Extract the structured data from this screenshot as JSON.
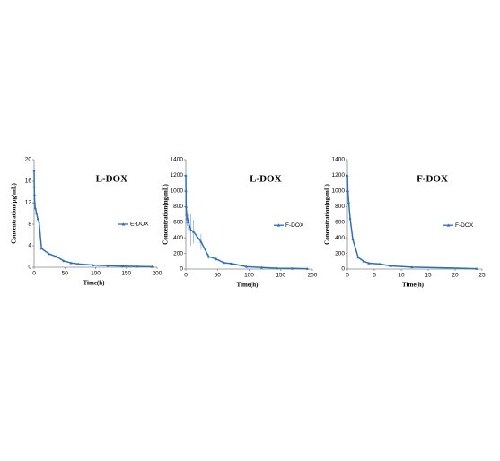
{
  "chart_data": [
    {
      "type": "line",
      "title": "L-DOX",
      "x_label": "Time(h)",
      "y_label": "Concentration(μg/mL)",
      "x": [
        0,
        0.25,
        0.5,
        1,
        2,
        4,
        6,
        8,
        12,
        24,
        36,
        48,
        60,
        72,
        96,
        120,
        144,
        168,
        192
      ],
      "series": [
        {
          "name": "E-DOX",
          "color": "#2e6fb7",
          "values": [
            18,
            15,
            13.5,
            12,
            11,
            10,
            9,
            8.5,
            3.5,
            2.5,
            2,
            1.2,
            0.8,
            0.6,
            0.4,
            0.3,
            0.2,
            0.15,
            0.1
          ]
        }
      ],
      "xlim": [
        0,
        200
      ],
      "ylim": [
        0,
        20
      ],
      "xticks": [
        0,
        50,
        100,
        150,
        200
      ],
      "yticks": [
        0,
        4,
        8,
        12,
        16,
        20
      ],
      "legend": "right"
    },
    {
      "type": "line",
      "title": "L-DOX",
      "x_label": "Time(h)",
      "y_label": "Concentration(ng/mL)",
      "x": [
        0,
        0.25,
        0.5,
        1,
        2,
        4,
        8,
        12,
        24,
        36,
        48,
        60,
        72,
        96,
        120,
        144,
        168,
        192
      ],
      "series": [
        {
          "name": "F-DOX",
          "color": "#2e6fb7",
          "values": [
            1200,
            1000,
            800,
            700,
            650,
            600,
            500,
            480,
            350,
            160,
            130,
            80,
            70,
            30,
            20,
            10,
            8,
            5
          ],
          "errors": [
            150,
            200,
            150,
            120,
            100,
            100,
            200,
            150,
            100,
            30,
            30,
            15,
            10,
            10,
            5,
            5,
            3,
            2
          ]
        }
      ],
      "xlim": [
        0,
        200
      ],
      "ylim": [
        0,
        1400
      ],
      "xticks": [
        0,
        50,
        100,
        150,
        200
      ],
      "yticks": [
        0,
        200,
        400,
        600,
        800,
        1000,
        1200,
        1400
      ],
      "legend": "right"
    },
    {
      "type": "line",
      "title": "F-DOX",
      "x_label": "Time(h)",
      "y_label": "Concentration(ng/mL)",
      "x": [
        0,
        0.083,
        0.25,
        0.5,
        1,
        2,
        3,
        4,
        6,
        8,
        12,
        24
      ],
      "series": [
        {
          "name": "F-DOX",
          "color": "#2e6fb7",
          "values": [
            1200,
            1000,
            850,
            650,
            380,
            150,
            100,
            75,
            65,
            40,
            25,
            5
          ]
        }
      ],
      "xlim": [
        0,
        25
      ],
      "ylim": [
        0,
        1400
      ],
      "xticks": [
        0,
        5,
        10,
        15,
        20,
        25
      ],
      "yticks": [
        0,
        200,
        400,
        600,
        800,
        1000,
        1200,
        1400
      ],
      "legend": "right"
    }
  ]
}
